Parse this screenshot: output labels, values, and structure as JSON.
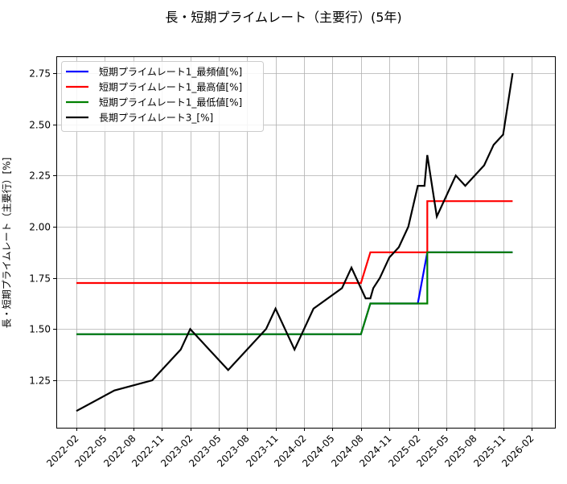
{
  "chart_data": {
    "type": "line",
    "title": "長・短期プライムレート（主要行）(5年)",
    "xlabel": "",
    "ylabel": "長・短期プライムレート（主要行）[%]",
    "ylim": [
      1.025,
      2.84
    ],
    "yticks": [
      "1.25",
      "1.50",
      "1.75",
      "2.00",
      "2.25",
      "2.50",
      "2.75"
    ],
    "xticks": [
      "2022-02",
      "2022-05",
      "2022-08",
      "2022-11",
      "2023-02",
      "2023-05",
      "2023-08",
      "2023-11",
      "2024-02",
      "2024-05",
      "2024-08",
      "2024-11",
      "2025-02",
      "2025-05",
      "2025-08",
      "2025-11",
      "2026-02"
    ],
    "grid": true,
    "legend_position": "upper left",
    "series": [
      {
        "name": "短期プライムレート1_最頻値[%]",
        "color": "#0000ff",
        "points": [
          [
            "2022-02",
            1.475
          ],
          [
            "2024-08",
            1.475
          ],
          [
            "2024-09",
            1.625
          ],
          [
            "2025-02",
            1.625
          ],
          [
            "2025-03",
            1.875
          ],
          [
            "2025-12",
            1.875
          ]
        ]
      },
      {
        "name": "短期プライムレート1_最高値[%]",
        "color": "#ff0000",
        "points": [
          [
            "2022-02",
            1.725
          ],
          [
            "2024-08",
            1.725
          ],
          [
            "2024-09",
            1.875
          ],
          [
            "2025-03",
            1.875
          ],
          [
            "2025-03",
            2.125
          ],
          [
            "2025-12",
            2.125
          ]
        ]
      },
      {
        "name": "短期プライムレート1_最低値[%]",
        "color": "#008000",
        "points": [
          [
            "2022-02",
            1.475
          ],
          [
            "2024-08",
            1.475
          ],
          [
            "2024-09",
            1.625
          ],
          [
            "2025-03",
            1.625
          ],
          [
            "2025-03",
            1.875
          ],
          [
            "2025-12",
            1.875
          ]
        ]
      },
      {
        "name": "長期プライムレート3_[%]",
        "color": "#000000",
        "points": [
          [
            "2022-02",
            1.1
          ],
          [
            "2022-06",
            1.2
          ],
          [
            "2022-10",
            1.25
          ],
          [
            "2023-01",
            1.4
          ],
          [
            "2023-02",
            1.5
          ],
          [
            "2023-06",
            1.3
          ],
          [
            "2023-10",
            1.5
          ],
          [
            "2023-11",
            1.6
          ],
          [
            "2024-01",
            1.4
          ],
          [
            "2024-03",
            1.6
          ],
          [
            "2024-06",
            1.7
          ],
          [
            "2024-07",
            1.8
          ],
          [
            "2024-08.5",
            1.65
          ],
          [
            "2024-09",
            1.65
          ],
          [
            "2024-09.3",
            1.7
          ],
          [
            "2024-10",
            1.75
          ],
          [
            "2024-11",
            1.85
          ],
          [
            "2024-12",
            1.9
          ],
          [
            "2025-01",
            2.0
          ],
          [
            "2025-02",
            2.2
          ],
          [
            "2025-02.7",
            2.2
          ],
          [
            "2025-03",
            2.35
          ],
          [
            "2025-04",
            2.05
          ],
          [
            "2025-06",
            2.25
          ],
          [
            "2025-07",
            2.2
          ],
          [
            "2025-09",
            2.3
          ],
          [
            "2025-10",
            2.4
          ],
          [
            "2025-11",
            2.45
          ],
          [
            "2025-12",
            2.75
          ]
        ]
      }
    ]
  },
  "legend": [
    {
      "label": "短期プライムレート1_最頻値[%]",
      "color": "#0000ff"
    },
    {
      "label": "短期プライムレート1_最高値[%]",
      "color": "#ff0000"
    },
    {
      "label": "短期プライムレート1_最低値[%]",
      "color": "#008000"
    },
    {
      "label": "長期プライムレート3_[%]",
      "color": "#000000"
    }
  ]
}
